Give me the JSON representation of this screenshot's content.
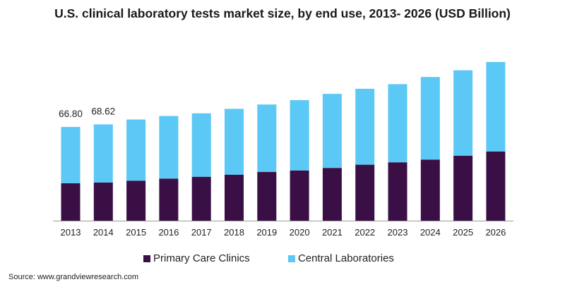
{
  "chart_data": {
    "type": "bar",
    "stacked": true,
    "title": "U.S. clinical laboratory tests market size, by end use, 2013- 2026 (USD Billion)",
    "xlabel": "",
    "ylabel": "",
    "ylim": [
      0,
      150
    ],
    "grid": false,
    "legend_placement": "bottom",
    "categories": [
      "2013",
      "2014",
      "2015",
      "2016",
      "2017",
      "2018",
      "2019",
      "2020",
      "2021",
      "2022",
      "2023",
      "2024",
      "2025",
      "2026"
    ],
    "series": [
      {
        "name": "Primary Care Clinics",
        "color": "#3a0f45",
        "values": [
          26.7,
          27.2,
          28.5,
          30.0,
          31.3,
          32.8,
          34.8,
          35.8,
          37.6,
          39.9,
          41.6,
          43.5,
          46.3,
          49.3
        ]
      },
      {
        "name": "Central Laboratories",
        "color": "#5bc8f5",
        "values": [
          40.1,
          41.42,
          43.6,
          44.6,
          45.2,
          46.9,
          48.0,
          50.1,
          52.8,
          54.1,
          55.7,
          58.9,
          60.9,
          63.8
        ]
      }
    ],
    "data_labels": [
      {
        "category": "2013",
        "text": "66.80"
      },
      {
        "category": "2014",
        "text": "68.62"
      }
    ]
  },
  "source": "Source: www.grandviewresearch.com"
}
